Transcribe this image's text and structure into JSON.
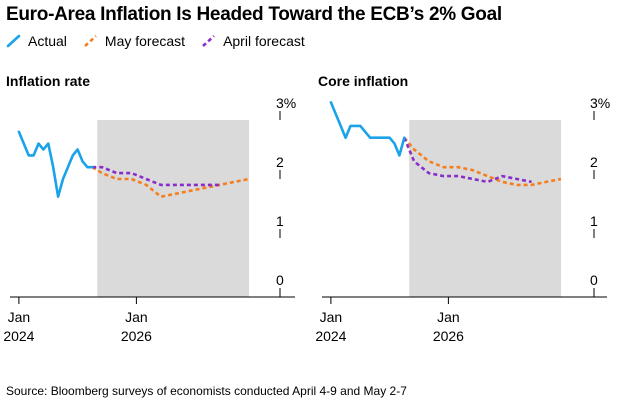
{
  "title": "Euro-Area Inflation Is Headed Toward the ECB’s 2% Goal",
  "legend": [
    {
      "label": "Actual",
      "color": "#1aa3e8"
    },
    {
      "label": "May forecast",
      "color": "#f57f20"
    },
    {
      "label": "April forecast",
      "color": "#8a2ec9"
    }
  ],
  "source": "Source: Bloomberg surveys of economists conducted April 4-9 and May 2-7",
  "colors": {
    "actual": "#1aa3e8",
    "may": "#f57f20",
    "april": "#8a2ec9",
    "shade": "#dadada",
    "axis": "#000000"
  },
  "chart_data": [
    {
      "type": "line",
      "title": "Inflation rate",
      "ylim": [
        0,
        3
      ],
      "yticks": [
        0,
        1,
        2,
        3
      ],
      "ytick_labels": [
        "0",
        "1",
        "2",
        "3%"
      ],
      "xlim": [
        "2023-12",
        "2027-12"
      ],
      "xticks": [
        {
          "date": "2024-01",
          "label": [
            "Jan",
            "2024"
          ]
        },
        {
          "date": "2026-01",
          "label": [
            "Jan",
            "2026"
          ]
        }
      ],
      "forecast_shade": [
        "2025-05",
        "2027-12"
      ],
      "grid": false,
      "series": [
        {
          "name": "Actual",
          "style": "solid",
          "color": "#1aa3e8",
          "x": [
            "2024-01",
            "2024-02",
            "2024-03",
            "2024-04",
            "2024-05",
            "2024-06",
            "2024-07",
            "2024-08",
            "2024-09",
            "2024-10",
            "2024-11",
            "2024-12",
            "2025-01",
            "2025-02",
            "2025-03",
            "2025-04"
          ],
          "y": [
            2.8,
            2.6,
            2.4,
            2.4,
            2.6,
            2.5,
            2.6,
            2.2,
            1.7,
            2.0,
            2.2,
            2.4,
            2.5,
            2.3,
            2.2,
            2.2
          ]
        },
        {
          "name": "May forecast",
          "style": "dashed",
          "color": "#f57f20",
          "x": [
            "2025-04",
            "2025-06",
            "2025-09",
            "2025-12",
            "2026-03",
            "2026-06",
            "2026-09",
            "2026-12",
            "2027-03",
            "2027-06",
            "2027-09",
            "2027-12"
          ],
          "y": [
            2.2,
            2.1,
            2.0,
            2.0,
            1.9,
            1.7,
            1.75,
            1.8,
            1.85,
            1.9,
            1.95,
            2.0
          ]
        },
        {
          "name": "April forecast",
          "style": "dashed",
          "color": "#8a2ec9",
          "x": [
            "2025-04",
            "2025-06",
            "2025-09",
            "2025-12",
            "2026-03",
            "2026-06",
            "2026-09",
            "2026-12",
            "2027-03",
            "2027-06"
          ],
          "y": [
            2.2,
            2.2,
            2.1,
            2.1,
            2.0,
            1.9,
            1.9,
            1.9,
            1.9,
            1.9
          ]
        }
      ]
    },
    {
      "type": "line",
      "title": "Core inflation",
      "ylim": [
        0,
        3
      ],
      "yticks": [
        0,
        1,
        2,
        3
      ],
      "ytick_labels": [
        "0",
        "1",
        "2",
        "3%"
      ],
      "xlim": [
        "2023-12",
        "2027-12"
      ],
      "xticks": [
        {
          "date": "2024-01",
          "label": [
            "Jan",
            "2024"
          ]
        },
        {
          "date": "2026-01",
          "label": [
            "Jan",
            "2026"
          ]
        }
      ],
      "forecast_shade": [
        "2025-05",
        "2027-12"
      ],
      "grid": false,
      "series": [
        {
          "name": "Actual",
          "style": "solid",
          "color": "#1aa3e8",
          "x": [
            "2024-01",
            "2024-02",
            "2024-03",
            "2024-04",
            "2024-05",
            "2024-06",
            "2024-07",
            "2024-08",
            "2024-09",
            "2024-10",
            "2024-11",
            "2024-12",
            "2025-01",
            "2025-02",
            "2025-03",
            "2025-04"
          ],
          "y": [
            3.3,
            3.1,
            2.9,
            2.7,
            2.9,
            2.9,
            2.9,
            2.8,
            2.7,
            2.7,
            2.7,
            2.7,
            2.7,
            2.6,
            2.4,
            2.7
          ]
        },
        {
          "name": "May forecast",
          "style": "dashed",
          "color": "#f57f20",
          "x": [
            "2025-04",
            "2025-06",
            "2025-09",
            "2025-12",
            "2026-03",
            "2026-06",
            "2026-09",
            "2026-12",
            "2027-03",
            "2027-06",
            "2027-09",
            "2027-12"
          ],
          "y": [
            2.7,
            2.5,
            2.3,
            2.2,
            2.2,
            2.15,
            2.05,
            1.95,
            1.9,
            1.9,
            1.95,
            2.0
          ]
        },
        {
          "name": "April forecast",
          "style": "dashed",
          "color": "#8a2ec9",
          "x": [
            "2025-04",
            "2025-06",
            "2025-09",
            "2025-12",
            "2026-03",
            "2026-06",
            "2026-09",
            "2026-12",
            "2027-03",
            "2027-06"
          ],
          "y": [
            2.7,
            2.3,
            2.1,
            2.05,
            2.05,
            2.0,
            1.95,
            2.05,
            2.0,
            1.95
          ]
        }
      ]
    }
  ]
}
